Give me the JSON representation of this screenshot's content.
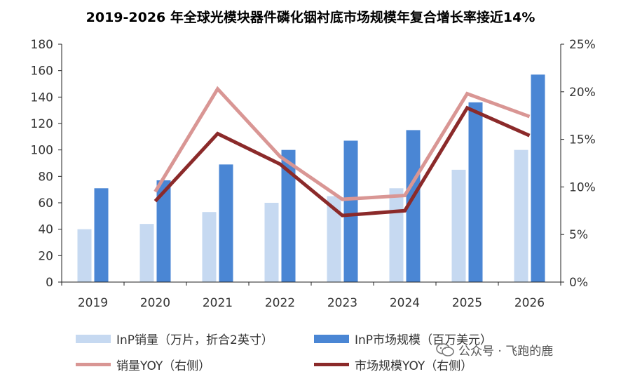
{
  "title": "2019-2026 年全球光模块器件磷化铟衬底市场规模年复合增长率接近14%",
  "watermark": {
    "text": "公众号 · 飞跑的鹿",
    "icon": "wechat-icon"
  },
  "colors": {
    "bar_volume": "#c6d9f1",
    "bar_market": "#4a86d4",
    "line_volume_yoy": "#d99694",
    "line_market_yoy": "#8b2a2a",
    "axis": "#222222"
  },
  "chart_data": {
    "type": "bar",
    "categories": [
      "2019",
      "2020",
      "2021",
      "2022",
      "2023",
      "2024",
      "2025",
      "2026"
    ],
    "series": [
      {
        "name": "InP销量（万片，折合2英寸）",
        "type": "bar",
        "axis": "left",
        "values": [
          40,
          44,
          53,
          60,
          65,
          71,
          85,
          100
        ]
      },
      {
        "name": "InP市场规模（百万美元）",
        "type": "bar",
        "axis": "left",
        "values": [
          71,
          77,
          89,
          100,
          107,
          115,
          136,
          157
        ]
      },
      {
        "name": "销量YOY（右侧）",
        "type": "line",
        "axis": "right",
        "values": [
          null,
          9.5,
          20.3,
          13.2,
          8.7,
          9.1,
          19.8,
          17.4
        ]
      },
      {
        "name": "市场规模YOY（右侧）",
        "type": "line",
        "axis": "right",
        "values": [
          null,
          8.5,
          15.6,
          12.4,
          7.0,
          7.5,
          18.3,
          15.4
        ]
      }
    ],
    "left_axis": {
      "min": 0,
      "max": 180,
      "ticks": [
        "0",
        "20",
        "40",
        "60",
        "80",
        "100",
        "120",
        "140",
        "160",
        "180"
      ]
    },
    "right_axis": {
      "min": 0,
      "max": 25,
      "ticks": [
        "0%",
        "5%",
        "10%",
        "15%",
        "20%",
        "25%"
      ]
    },
    "grid": false,
    "legend_position": "bottom"
  }
}
